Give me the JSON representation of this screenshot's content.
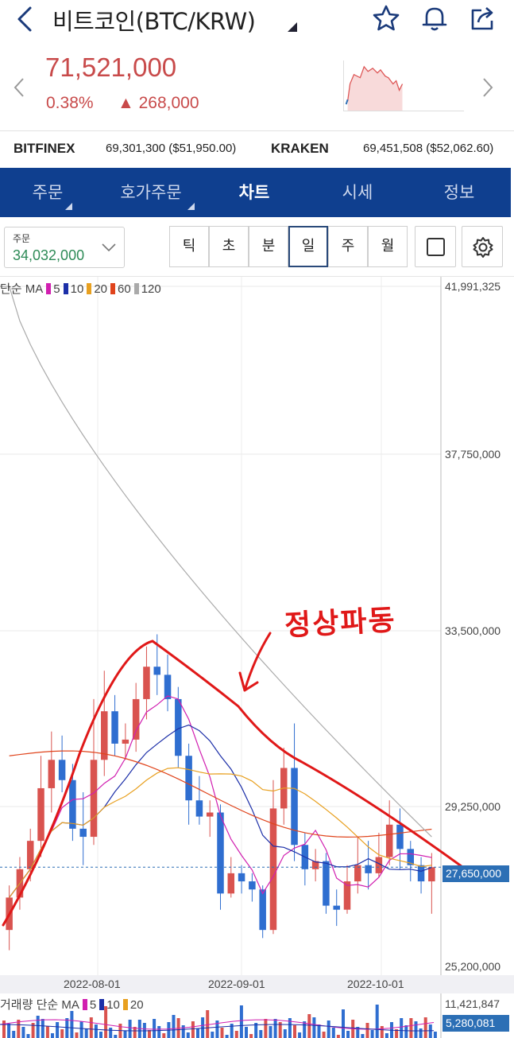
{
  "header": {
    "title": "비트코인(BTC/KRW)",
    "icons": [
      "back-arrow-icon",
      "star-icon",
      "bell-icon",
      "share-icon"
    ]
  },
  "quote": {
    "price": "71,521,000",
    "change_pct": "0.38%",
    "change_abs": "268,000",
    "direction": "up",
    "color": "#c84a4a"
  },
  "exchanges": [
    {
      "name": "BITFINEX",
      "value": "69,301,300 ($51,950.00)"
    },
    {
      "name": "KRAKEN",
      "value": "69,451,508 ($52,062.60)"
    }
  ],
  "tabs": [
    {
      "label": "주문",
      "active": false,
      "has_dropdown": true
    },
    {
      "label": "호가주문",
      "active": false,
      "has_dropdown": true
    },
    {
      "label": "차트",
      "active": true,
      "has_dropdown": false
    },
    {
      "label": "시세",
      "active": false,
      "has_dropdown": false
    },
    {
      "label": "정보",
      "active": false,
      "has_dropdown": false
    }
  ],
  "toolbar": {
    "order_label": "주문",
    "order_value": "34,032,000",
    "periods": [
      {
        "label": "틱",
        "active": false
      },
      {
        "label": "초",
        "active": false
      },
      {
        "label": "분",
        "active": false
      },
      {
        "label": "일",
        "active": true
      },
      {
        "label": "주",
        "active": false
      },
      {
        "label": "월",
        "active": false
      }
    ]
  },
  "legend": {
    "prefix": "단순 MA",
    "items": [
      {
        "label": "5",
        "color": "#d11fb0"
      },
      {
        "label": "10",
        "color": "#1c2fa8"
      },
      {
        "label": "20",
        "color": "#e8a020"
      },
      {
        "label": "60",
        "color": "#e0441c"
      },
      {
        "label": "120",
        "color": "#aaaaaa"
      }
    ]
  },
  "volume_legend": {
    "prefix": "거래량 단순 MA",
    "items": [
      {
        "label": "5",
        "color": "#d11fb0"
      },
      {
        "label": "10",
        "color": "#1c2fa8"
      },
      {
        "label": "20",
        "color": "#e8a020"
      }
    ],
    "max_label": "11,421,847",
    "current_label": "5,280,081"
  },
  "annotation": "정상파동",
  "chart_data": {
    "type": "candlestick",
    "y_ticks": [
      "41,991,325",
      "37,750,000",
      "33,500,000",
      "29,250,000",
      "25,200,000"
    ],
    "y_tick_values": [
      41991325,
      37750000,
      33500000,
      29250000,
      25200000
    ],
    "current_price_label": "27,650,000",
    "x_ticks": [
      "2022-08-01",
      "2022-09-01",
      "2022-10-01"
    ],
    "ylim": [
      25200000,
      41991325
    ],
    "ma120_start": 41991325,
    "candles_approx": [
      [
        26100000,
        26900000,
        25600000,
        27200000
      ],
      [
        26900000,
        27600000,
        26600000,
        27900000
      ],
      [
        27600000,
        28300000,
        27300000,
        28600000
      ],
      [
        28300000,
        29600000,
        27900000,
        30400000
      ],
      [
        29600000,
        30300000,
        29000000,
        31000000
      ],
      [
        30300000,
        29800000,
        29500000,
        30900000
      ],
      [
        29800000,
        28600000,
        28300000,
        30200000
      ],
      [
        28600000,
        28400000,
        27700000,
        29500000
      ],
      [
        28400000,
        30300000,
        28200000,
        31800000
      ],
      [
        30300000,
        31500000,
        29900000,
        32500000
      ],
      [
        31500000,
        30700000,
        30400000,
        31900000
      ],
      [
        30700000,
        30800000,
        30300000,
        31200000
      ],
      [
        30800000,
        31800000,
        30500000,
        32200000
      ],
      [
        31800000,
        32600000,
        31300000,
        33100000
      ],
      [
        32600000,
        32400000,
        31900000,
        33400000
      ],
      [
        32400000,
        31800000,
        31500000,
        32900000
      ],
      [
        31800000,
        30400000,
        30100000,
        32100000
      ],
      [
        30400000,
        29300000,
        28700000,
        30700000
      ],
      [
        29300000,
        28900000,
        28700000,
        29900000
      ],
      [
        28900000,
        29000000,
        28400000,
        29300000
      ],
      [
        29000000,
        27000000,
        26600000,
        29200000
      ],
      [
        27000000,
        27500000,
        26900000,
        27900000
      ],
      [
        27500000,
        27300000,
        27000000,
        27700000
      ],
      [
        27300000,
        27100000,
        26800000,
        27500000
      ],
      [
        27100000,
        26100000,
        25900000,
        27200000
      ],
      [
        26100000,
        29100000,
        26000000,
        29800000
      ],
      [
        29100000,
        30100000,
        28700000,
        30600000
      ],
      [
        30100000,
        28200000,
        27800000,
        31200000
      ],
      [
        28200000,
        27600000,
        27200000,
        28500000
      ],
      [
        27600000,
        27800000,
        27300000,
        28100000
      ],
      [
        27800000,
        26700000,
        26500000,
        28000000
      ],
      [
        26700000,
        26600000,
        26200000,
        27100000
      ],
      [
        26600000,
        27300000,
        26500000,
        27700000
      ],
      [
        27300000,
        27700000,
        27000000,
        28400000
      ],
      [
        27700000,
        27500000,
        27100000,
        28300000
      ],
      [
        27500000,
        27900000,
        27400000,
        28500000
      ],
      [
        27900000,
        28700000,
        27700000,
        29300000
      ],
      [
        28700000,
        28100000,
        27600000,
        29100000
      ],
      [
        28100000,
        27700000,
        27300000,
        28300000
      ],
      [
        27700000,
        27300000,
        27000000,
        27900000
      ],
      [
        27300000,
        27650000,
        26500000,
        28000000
      ]
    ]
  }
}
